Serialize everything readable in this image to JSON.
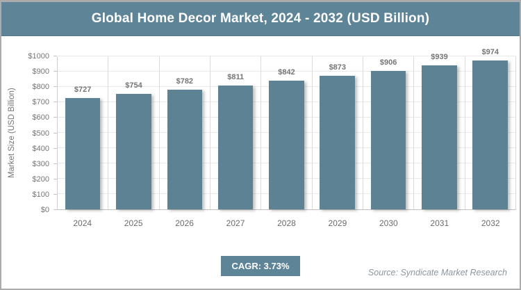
{
  "chart_data": {
    "type": "bar",
    "title": "Global Home Decor Market, 2024 - 2032 (USD Billion)",
    "categories": [
      "2024",
      "2025",
      "2026",
      "2027",
      "2028",
      "2029",
      "2030",
      "2031",
      "2032"
    ],
    "values": [
      727,
      754,
      782,
      811,
      842,
      873,
      906,
      939,
      974
    ],
    "labels": [
      "$727",
      "$754",
      "$782",
      "$811",
      "$842",
      "$873",
      "$906",
      "$939",
      "$974"
    ],
    "xlabel": "",
    "ylabel": "Market Size (USD Billion)",
    "ylim": [
      0,
      1000
    ],
    "y_tick_step": 100,
    "y_ticks": [
      "$0",
      "$100",
      "$200",
      "$300",
      "$400",
      "$500",
      "$600",
      "$700",
      "$800",
      "$900",
      "$1000"
    ],
    "grid": true,
    "legend": false
  },
  "footer": {
    "cagr_label": "CAGR: 3.73%",
    "source": "Source: Syndicate Market Research"
  },
  "colors": {
    "header_bg": "#5e8498",
    "badge_bg": "#5e8498",
    "bar_fill": "#5d8294",
    "grid_line": "#e9e9e9",
    "axis_line": "#c4c4c4",
    "label_gray": "#757575",
    "source_gray": "#8c979e"
  }
}
